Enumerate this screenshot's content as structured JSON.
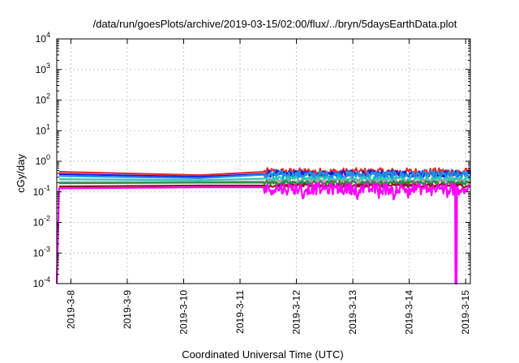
{
  "chart_data": {
    "type": "line",
    "title": "/data/run/goesPlots/archive/2019-03-15/02:00/flux/../bryn/5daysEarthData.plot",
    "xlabel": "Coordinated Universal Time (UTC)",
    "ylabel": "cGy/day",
    "y_scale": "log",
    "ylim": [
      0.0001,
      10000
    ],
    "xlim": [
      "2019-03-07T18:00",
      "2019-03-15T02:00"
    ],
    "grid": true,
    "legend": "none",
    "x_ticks": [
      "2019-3-8",
      "2019-3-9",
      "2019-3-10",
      "2019-3-11",
      "2019-3-12",
      "2019-3-13",
      "2019-3-14",
      "2019-3-15"
    ],
    "y_ticks": [
      {
        "value": 0.0001,
        "base": "10",
        "exp": "-4"
      },
      {
        "value": 0.001,
        "base": "10",
        "exp": "-3"
      },
      {
        "value": 0.01,
        "base": "10",
        "exp": "-2"
      },
      {
        "value": 0.1,
        "base": "10",
        "exp": "-1"
      },
      {
        "value": 1,
        "base": "10",
        "exp": "0"
      },
      {
        "value": 10,
        "base": "10",
        "exp": "1"
      },
      {
        "value": 100,
        "base": "10",
        "exp": "2"
      },
      {
        "value": 1000,
        "base": "10",
        "exp": "3"
      },
      {
        "value": 10000,
        "base": "10",
        "exp": "4"
      }
    ],
    "series": [
      {
        "color": "#e32b2b",
        "x": [
          "2019-03-07T19:00",
          "2019-03-10T07:00",
          "2019-03-11T10:00",
          "2019-03-15T02:00"
        ],
        "y": [
          0.45,
          0.35,
          0.45,
          0.45
        ],
        "noise_from": "2019-03-11T10:00",
        "noise_range": [
          0.33,
          0.6
        ]
      },
      {
        "color": "#1a1ae0",
        "x": [
          "2019-03-07T19:00",
          "2019-03-10T07:00",
          "2019-03-11T10:00",
          "2019-03-15T02:00"
        ],
        "y": [
          0.38,
          0.31,
          0.38,
          0.38
        ],
        "noise_from": "2019-03-11T10:00",
        "noise_range": [
          0.3,
          0.5
        ]
      },
      {
        "color": "#1e8fe6",
        "x": [
          "2019-03-07T19:00",
          "2019-03-10T07:00",
          "2019-03-11T10:00",
          "2019-03-15T02:00"
        ],
        "y": [
          0.33,
          0.28,
          0.36,
          0.36
        ],
        "noise_from": "2019-03-11T10:00",
        "noise_range": [
          0.26,
          0.48
        ]
      },
      {
        "color": "#2ac9b4",
        "x": [
          "2019-03-07T19:00",
          "2019-03-10T07:00",
          "2019-03-11T10:00",
          "2019-03-15T02:00"
        ],
        "y": [
          0.26,
          0.24,
          0.27,
          0.27
        ],
        "noise_from": "2019-03-11T10:00",
        "noise_range": [
          0.22,
          0.32
        ]
      },
      {
        "color": "#a3a3a3",
        "x": [
          "2019-03-07T19:00",
          "2019-03-10T07:00",
          "2019-03-11T10:00",
          "2019-03-15T02:00"
        ],
        "y": [
          0.21,
          0.21,
          0.22,
          0.22
        ],
        "noise_from": "2019-03-11T10:00",
        "noise_range": [
          0.19,
          0.25
        ]
      },
      {
        "color": "#2d8a3d",
        "x": [
          "2019-03-07T19:00",
          "2019-03-10T07:00",
          "2019-03-11T10:00",
          "2019-03-15T02:00"
        ],
        "y": [
          0.19,
          0.2,
          0.2,
          0.2
        ],
        "noise_from": "2019-03-11T10:00",
        "noise_range": [
          0.17,
          0.23
        ]
      },
      {
        "color": "#8b1a1a",
        "x": [
          "2019-03-07T19:00",
          "2019-03-10T07:00",
          "2019-03-11T10:00",
          "2019-03-15T02:00"
        ],
        "y": [
          0.15,
          0.16,
          0.16,
          0.16
        ],
        "noise_from": "2019-03-11T10:00",
        "noise_range": [
          0.14,
          0.18
        ]
      },
      {
        "color": "#ff00ff",
        "x": [
          "2019-03-07T18:00",
          "2019-03-07T19:00",
          "2019-03-10T07:00",
          "2019-03-11T10:00",
          "2019-03-14T19:30",
          "2019-03-14T19:40",
          "2019-03-14T20:10",
          "2019-03-14T20:20",
          "2019-03-15T02:00"
        ],
        "y": [
          0.0001,
          0.13,
          0.14,
          0.14,
          0.15,
          0.0001,
          0.0001,
          0.15,
          0.15
        ],
        "noise_from": "2019-03-11T10:00",
        "noise_range": [
          0.08,
          0.2
        ]
      }
    ]
  }
}
